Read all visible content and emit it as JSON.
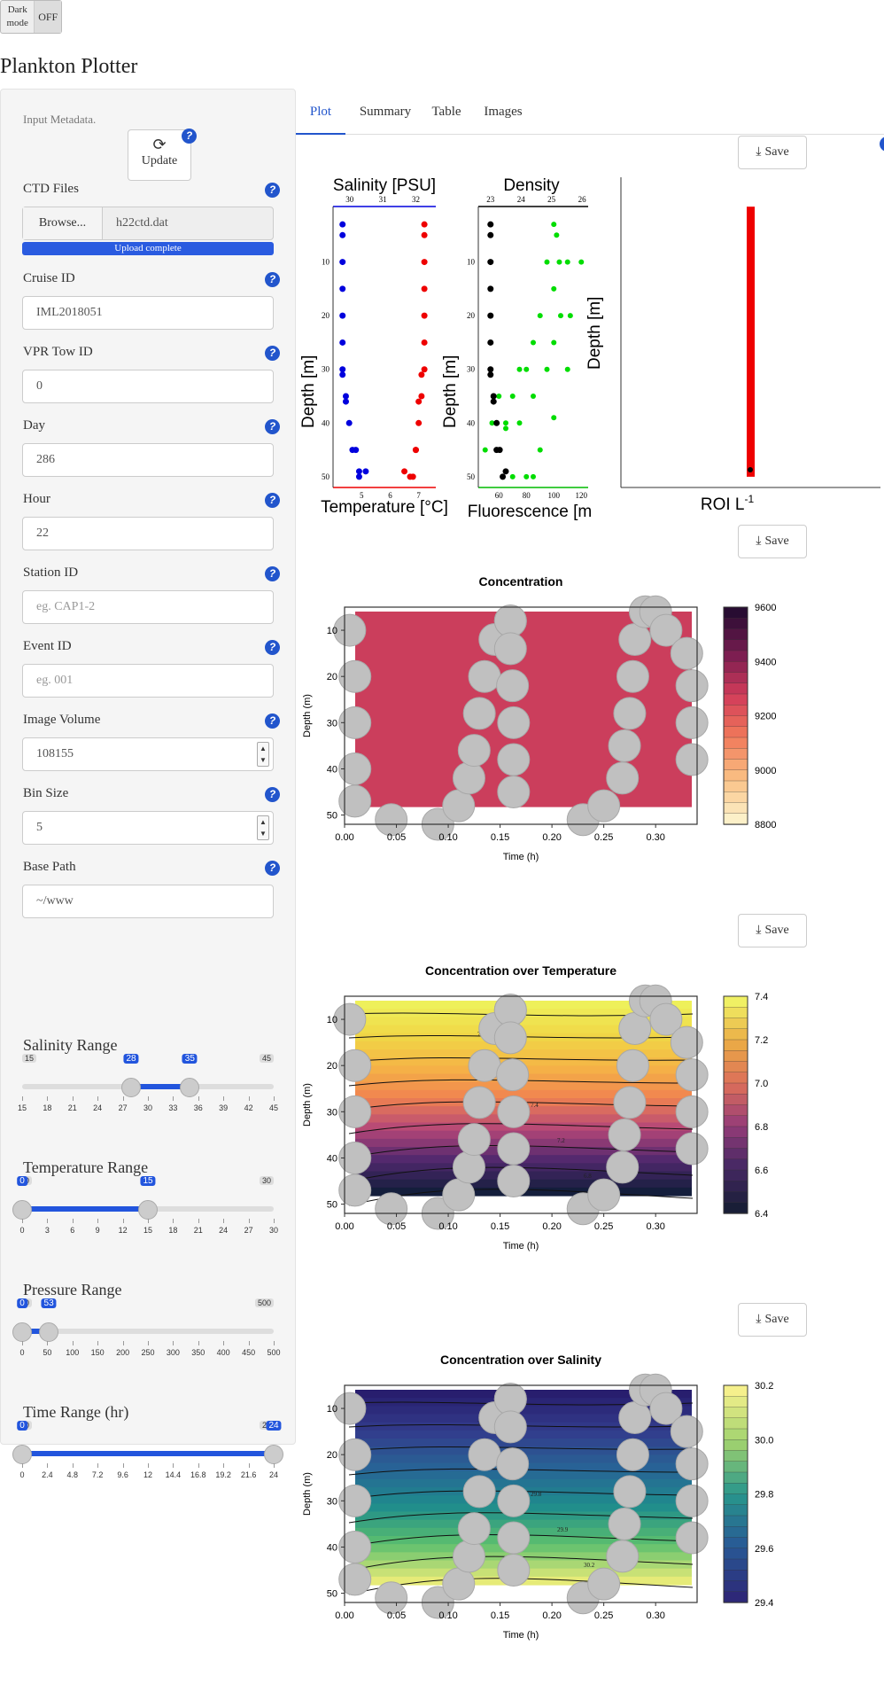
{
  "header": {
    "darkmode_label": "Dark mode",
    "darkmode_state": "OFF",
    "title": "Plankton Plotter"
  },
  "sidebar": {
    "metadata_label": "Input Metadata.",
    "update_label": "Update",
    "ctd_label": "CTD Files",
    "browse_label": "Browse...",
    "file_name": "h22ctd.dat",
    "upload_status": "Upload complete",
    "cruise_label": "Cruise ID",
    "cruise_value": "IML2018051",
    "tow_label": "VPR Tow ID",
    "tow_value": "0",
    "day_label": "Day",
    "day_value": "286",
    "hour_label": "Hour",
    "hour_value": "22",
    "station_label": "Station ID",
    "station_placeholder": "eg. CAP1-2",
    "event_label": "Event ID",
    "event_placeholder": "eg. 001",
    "volume_label": "Image Volume",
    "volume_value": "108155",
    "bin_label": "Bin Size",
    "bin_value": "5",
    "path_label": "Base Path",
    "path_value": "~/www",
    "salinity": {
      "title": "Salinity Range",
      "min": "15",
      "max": "45",
      "lo": "28",
      "hi": "35",
      "ticks": [
        "15",
        "18",
        "21",
        "24",
        "27",
        "30",
        "33",
        "36",
        "39",
        "42",
        "45"
      ]
    },
    "temperature": {
      "title": "Temperature Range",
      "min": "0",
      "max": "30",
      "lo": "0",
      "hi": "15",
      "ticks": [
        "0",
        "3",
        "6",
        "9",
        "12",
        "15",
        "18",
        "21",
        "24",
        "27",
        "30"
      ]
    },
    "pressure": {
      "title": "Pressure Range",
      "min": "0",
      "max": "500",
      "lo": "0",
      "hi": "53",
      "ticks": [
        "0",
        "50",
        "100",
        "150",
        "200",
        "250",
        "300",
        "350",
        "400",
        "450",
        "500"
      ]
    },
    "time": {
      "title": "Time Range (hr)",
      "min": "0",
      "max": "24",
      "lo": "0",
      "hi": "24",
      "ticks": [
        "0",
        "2.4",
        "4.8",
        "7.2",
        "9.6",
        "12",
        "14.4",
        "16.8",
        "19.2",
        "21.6",
        "24"
      ]
    }
  },
  "tabs": [
    "Plot",
    "Summary",
    "Table",
    "Images"
  ],
  "save_label": "Save",
  "profile": {
    "sal_title": "Salinity [PSU]",
    "temp_label": "Temperature [°C]",
    "sal_ticks": [
      "30",
      "31",
      "32"
    ],
    "temp_ticks": [
      "5",
      "6",
      "7"
    ],
    "dens_title": "Density",
    "fluor_label": "Fluorescence [m",
    "dens_ticks": [
      "23",
      "24",
      "25",
      "26"
    ],
    "fluor_ticks": [
      "60",
      "80",
      "100",
      "120"
    ],
    "depth_label": "Depth [m]",
    "depth_ticks": [
      "10",
      "20",
      "30",
      "40",
      "50"
    ],
    "roi_label": "ROI L",
    "roi_sup": "-1"
  },
  "colors": {
    "salinity": "#0000dd",
    "temperature": "#ee0000",
    "density": "#000000",
    "fluorescence": "#00dd00",
    "roi": "#ee0000",
    "accent": "#2255dd"
  },
  "chart_data": [
    {
      "type": "scatter",
      "title": "Salinity [PSU]",
      "xlabel": "Temperature [°C]",
      "ylabel": "Depth [m]",
      "series": [
        {
          "name": "Salinity",
          "x": [
            29.8,
            29.8,
            29.8,
            29.8,
            29.8,
            29.8,
            29.8,
            29.8,
            29.9,
            29.9,
            30.0,
            30.1,
            30.2,
            30.3,
            30.3,
            30.5
          ],
          "y": [
            3,
            5,
            10,
            15,
            20,
            25,
            30,
            31,
            35,
            36,
            40,
            45,
            45,
            49,
            50,
            49
          ]
        },
        {
          "name": "Temperature",
          "x": [
            7.2,
            7.2,
            7.2,
            7.2,
            7.2,
            7.2,
            7.2,
            7.1,
            7.1,
            7.0,
            7.0,
            6.9,
            6.9,
            6.5,
            6.7,
            6.8
          ],
          "y": [
            3,
            5,
            10,
            15,
            20,
            25,
            30,
            31,
            35,
            36,
            40,
            45,
            45,
            49,
            50,
            50
          ]
        }
      ]
    },
    {
      "type": "scatter",
      "title": "Density",
      "xlabel": "Fluorescence",
      "ylabel": "Depth [m]",
      "series": [
        {
          "name": "Density",
          "x": [
            23.0,
            23.0,
            23.0,
            23.0,
            23.0,
            23.0,
            23.0,
            23.0,
            23.1,
            23.1,
            23.2,
            23.2,
            23.3,
            23.4,
            23.5
          ],
          "y": [
            3,
            5,
            10,
            15,
            20,
            25,
            30,
            31,
            35,
            36,
            40,
            45,
            45,
            50,
            49
          ]
        },
        {
          "name": "Fluorescence",
          "x": [
            100,
            102,
            104,
            95,
            110,
            120,
            100,
            105,
            112,
            90,
            100,
            85,
            80,
            75,
            110,
            95,
            70,
            60,
            85,
            55,
            65,
            75,
            90,
            50,
            60,
            70,
            80,
            85,
            65,
            100
          ],
          "y": [
            3,
            5,
            10,
            10,
            10,
            10,
            15,
            20,
            20,
            20,
            25,
            25,
            30,
            30,
            30,
            30,
            35,
            35,
            35,
            40,
            40,
            40,
            45,
            45,
            45,
            50,
            50,
            50,
            41,
            39
          ]
        }
      ]
    },
    {
      "type": "bar",
      "title": "",
      "xlabel": "ROI L-1",
      "ylabel": "Depth [m]",
      "values": [
        {
          "depth_from": 3,
          "depth_to": 50,
          "roi": 9.2
        }
      ]
    },
    {
      "type": "heatmap",
      "title": "Concentration",
      "xlabel": "Time (h)",
      "ylabel": "Depth (m)",
      "xticks": [
        "0.00",
        "0.05",
        "0.10",
        "0.15",
        "0.20",
        "0.25",
        "0.30"
      ],
      "yticks": [
        "10",
        "20",
        "30",
        "40",
        "50"
      ],
      "colorbar": [
        "9600",
        "9400",
        "9200",
        "9000",
        "8800"
      ],
      "value_range": [
        8800,
        9600
      ],
      "fill_value": 9250
    },
    {
      "type": "heatmap",
      "title": "Concentration over Temperature",
      "xlabel": "Time (h)",
      "ylabel": "Depth (m)",
      "xticks": [
        "0.00",
        "0.05",
        "0.10",
        "0.15",
        "0.20",
        "0.25",
        "0.30"
      ],
      "yticks": [
        "10",
        "20",
        "30",
        "40",
        "50"
      ],
      "colorbar": [
        "7.4",
        "7.2",
        "7.0",
        "6.8",
        "6.6",
        "6.4"
      ],
      "value_range": [
        6.4,
        7.4
      ],
      "contour_labels": [
        "7.4",
        "7.4",
        "7.4",
        "7.2",
        "6.8"
      ]
    },
    {
      "type": "heatmap",
      "title": "Concentration over Salinity",
      "xlabel": "Time (h)",
      "ylabel": "Depth (m)",
      "xticks": [
        "0.00",
        "0.05",
        "0.10",
        "0.15",
        "0.20",
        "0.25",
        "0.30"
      ],
      "yticks": [
        "10",
        "20",
        "30",
        "40",
        "50"
      ],
      "colorbar": [
        "30.2",
        "30.0",
        "29.8",
        "29.6",
        "29.4"
      ],
      "value_range": [
        29.3,
        30.35
      ],
      "contour_labels": [
        "29.4",
        "29.8",
        "29.8",
        "29.9",
        "30.2"
      ]
    }
  ]
}
